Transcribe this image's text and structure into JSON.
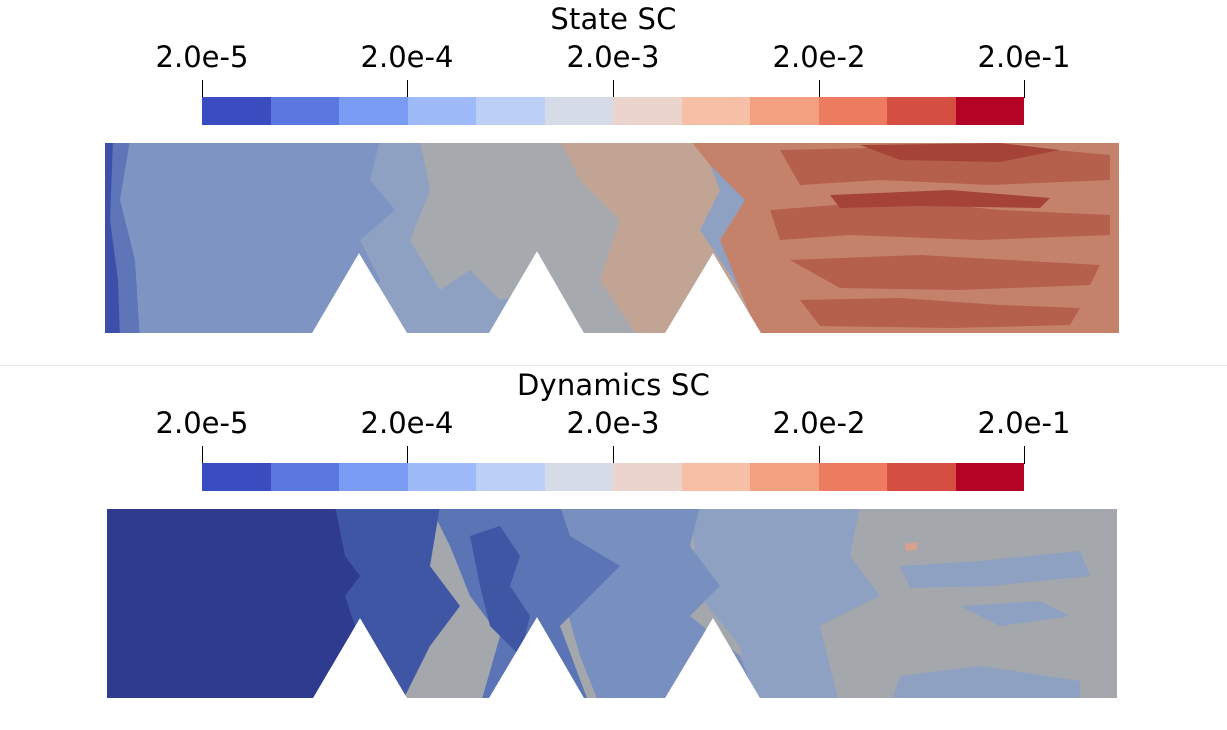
{
  "colorbar": {
    "colors": [
      "#3b4cc0",
      "#5a78e0",
      "#7b9cf3",
      "#9ebaf9",
      "#bcd0f5",
      "#d6dbe8",
      "#ead4cb",
      "#f6bfa6",
      "#f3a080",
      "#ec7b5f",
      "#d44e41",
      "#b40426"
    ],
    "tick_labels": [
      "2.0e-5",
      "2.0e-4",
      "2.0e-3",
      "2.0e-2",
      "2.0e-1"
    ]
  },
  "panels": [
    {
      "title": "State SC",
      "field_colors": {
        "base": "#8ea1c2",
        "left_edge": "#3d4fa8",
        "left_band": "#5e76b8",
        "zone1": "#7e95c4",
        "zone2": "#a6a9ae",
        "zone3": "#c2a494",
        "zone4": "#c5826b",
        "zone5": "#b55f4d",
        "zone6": "#a54436"
      }
    },
    {
      "title": "Dynamics SC",
      "field_colors": {
        "base": "#a4a8ad",
        "zone1": "#2f3b8f",
        "zone2": "#3f56a4",
        "zone3": "#5b74b6",
        "zone4": "#7890c0",
        "zone5": "#8ea1c2",
        "accent": "#d9a090"
      }
    }
  ]
}
